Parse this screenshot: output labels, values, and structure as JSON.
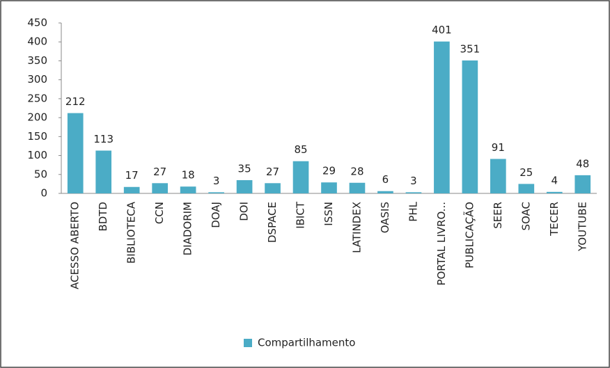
{
  "chart_data": {
    "type": "bar",
    "categories": [
      "ACESSO ABERTO",
      "BDTD",
      "BIBLIOTECA",
      "CCN",
      "DIADORIM",
      "DOAJ",
      "DOI",
      "DSPACE",
      "IBICT",
      "ISSN",
      "LATINDEX",
      "OASIS",
      "PHL",
      "PORTAL LIVRO...",
      "PUBLICAÇÃO",
      "SEER",
      "SOAC",
      "TECER",
      "YOUTUBE"
    ],
    "series": [
      {
        "name": "Compartilhamento",
        "color": "#4bacc6",
        "values": [
          212,
          113,
          17,
          27,
          18,
          3,
          35,
          27,
          85,
          29,
          28,
          6,
          3,
          401,
          351,
          91,
          25,
          4,
          48
        ]
      }
    ],
    "ylim": [
      0,
      450
    ],
    "yticks": [
      0,
      50,
      100,
      150,
      200,
      250,
      300,
      350,
      400,
      450
    ],
    "grid": false,
    "legend": "bottom"
  }
}
